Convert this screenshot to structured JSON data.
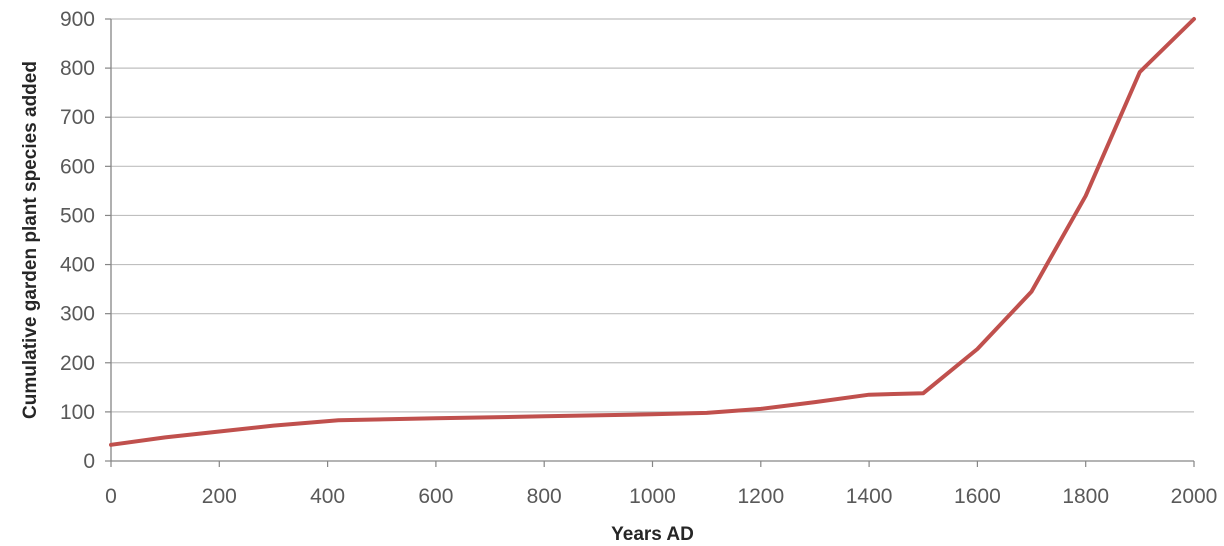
{
  "chart_data": {
    "type": "line",
    "title": "",
    "xlabel": "Years AD",
    "ylabel": "Cumulative garden plant species added",
    "xlim": [
      0,
      2000
    ],
    "ylim": [
      0,
      900
    ],
    "xticks": [
      0,
      200,
      400,
      600,
      800,
      1000,
      1200,
      1400,
      1600,
      1800,
      2000
    ],
    "yticks": [
      0,
      100,
      200,
      300,
      400,
      500,
      600,
      700,
      800,
      900
    ],
    "grid": "horizontal",
    "legend": "none",
    "series": [
      {
        "color": "#C0504D",
        "x": [
          0,
          100,
          200,
          300,
          420,
          600,
          800,
          1000,
          1100,
          1200,
          1300,
          1400,
          1500,
          1600,
          1700,
          1800,
          1900,
          2000
        ],
        "y": [
          33,
          48,
          60,
          72,
          83,
          87,
          91,
          95,
          98,
          106,
          120,
          135,
          138,
          228,
          345,
          540,
          792,
          900
        ]
      }
    ]
  }
}
